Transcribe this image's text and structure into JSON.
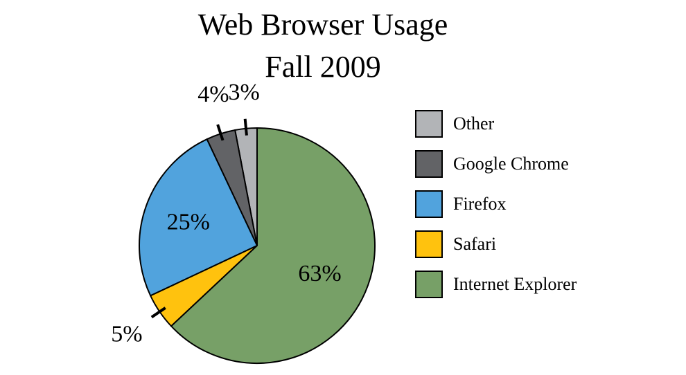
{
  "chart_data": {
    "type": "pie",
    "title": "Web Browser Usage",
    "subtitle": "Fall 2009",
    "legend_position": "right",
    "slices": [
      {
        "name": "Other",
        "value": 3,
        "label": "3%",
        "color": "#b2b4b7"
      },
      {
        "name": "Google Chrome",
        "value": 4,
        "label": "4%",
        "color": "#626366"
      },
      {
        "name": "Firefox",
        "value": 25,
        "label": "25%",
        "color": "#51a3dd"
      },
      {
        "name": "Safari",
        "value": 5,
        "label": "5%",
        "color": "#ffc20e"
      },
      {
        "name": "Internet Explorer",
        "value": 63,
        "label": "63%",
        "color": "#77a067"
      }
    ],
    "legend": [
      "Other",
      "Google Chrome",
      "Firefox",
      "Safari",
      "Internet Explorer"
    ]
  }
}
